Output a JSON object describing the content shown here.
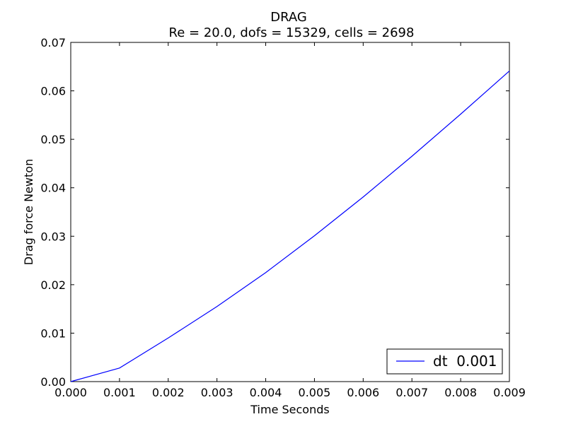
{
  "chart_data": {
    "type": "line",
    "title": "DRAG",
    "subtitle": "Re = 20.0, dofs = 15329, cells = 2698",
    "xlabel": "Time Seconds",
    "ylabel": "Drag force Newton",
    "xlim": [
      0,
      0.009
    ],
    "ylim": [
      0,
      0.07
    ],
    "xticks": [
      0.0,
      0.001,
      0.002,
      0.003,
      0.004,
      0.005,
      0.006,
      0.007,
      0.008,
      0.009
    ],
    "xtick_labels": [
      "0.000",
      "0.001",
      "0.002",
      "0.003",
      "0.004",
      "0.005",
      "0.006",
      "0.007",
      "0.008",
      "0.009"
    ],
    "yticks": [
      0.0,
      0.01,
      0.02,
      0.03,
      0.04,
      0.05,
      0.06,
      0.07
    ],
    "ytick_labels": [
      "0.00",
      "0.01",
      "0.02",
      "0.03",
      "0.04",
      "0.05",
      "0.06",
      "0.07"
    ],
    "grid": false,
    "legend_position": "lower-right",
    "series": [
      {
        "name": "dt  0.001",
        "color": "#0000ff",
        "x": [
          0.0,
          0.001,
          0.002,
          0.003,
          0.004,
          0.005,
          0.006,
          0.007,
          0.008,
          0.009
        ],
        "y": [
          0.0,
          0.0028,
          0.009,
          0.0155,
          0.0225,
          0.0301,
          0.0381,
          0.0465,
          0.0552,
          0.0641
        ]
      }
    ]
  }
}
